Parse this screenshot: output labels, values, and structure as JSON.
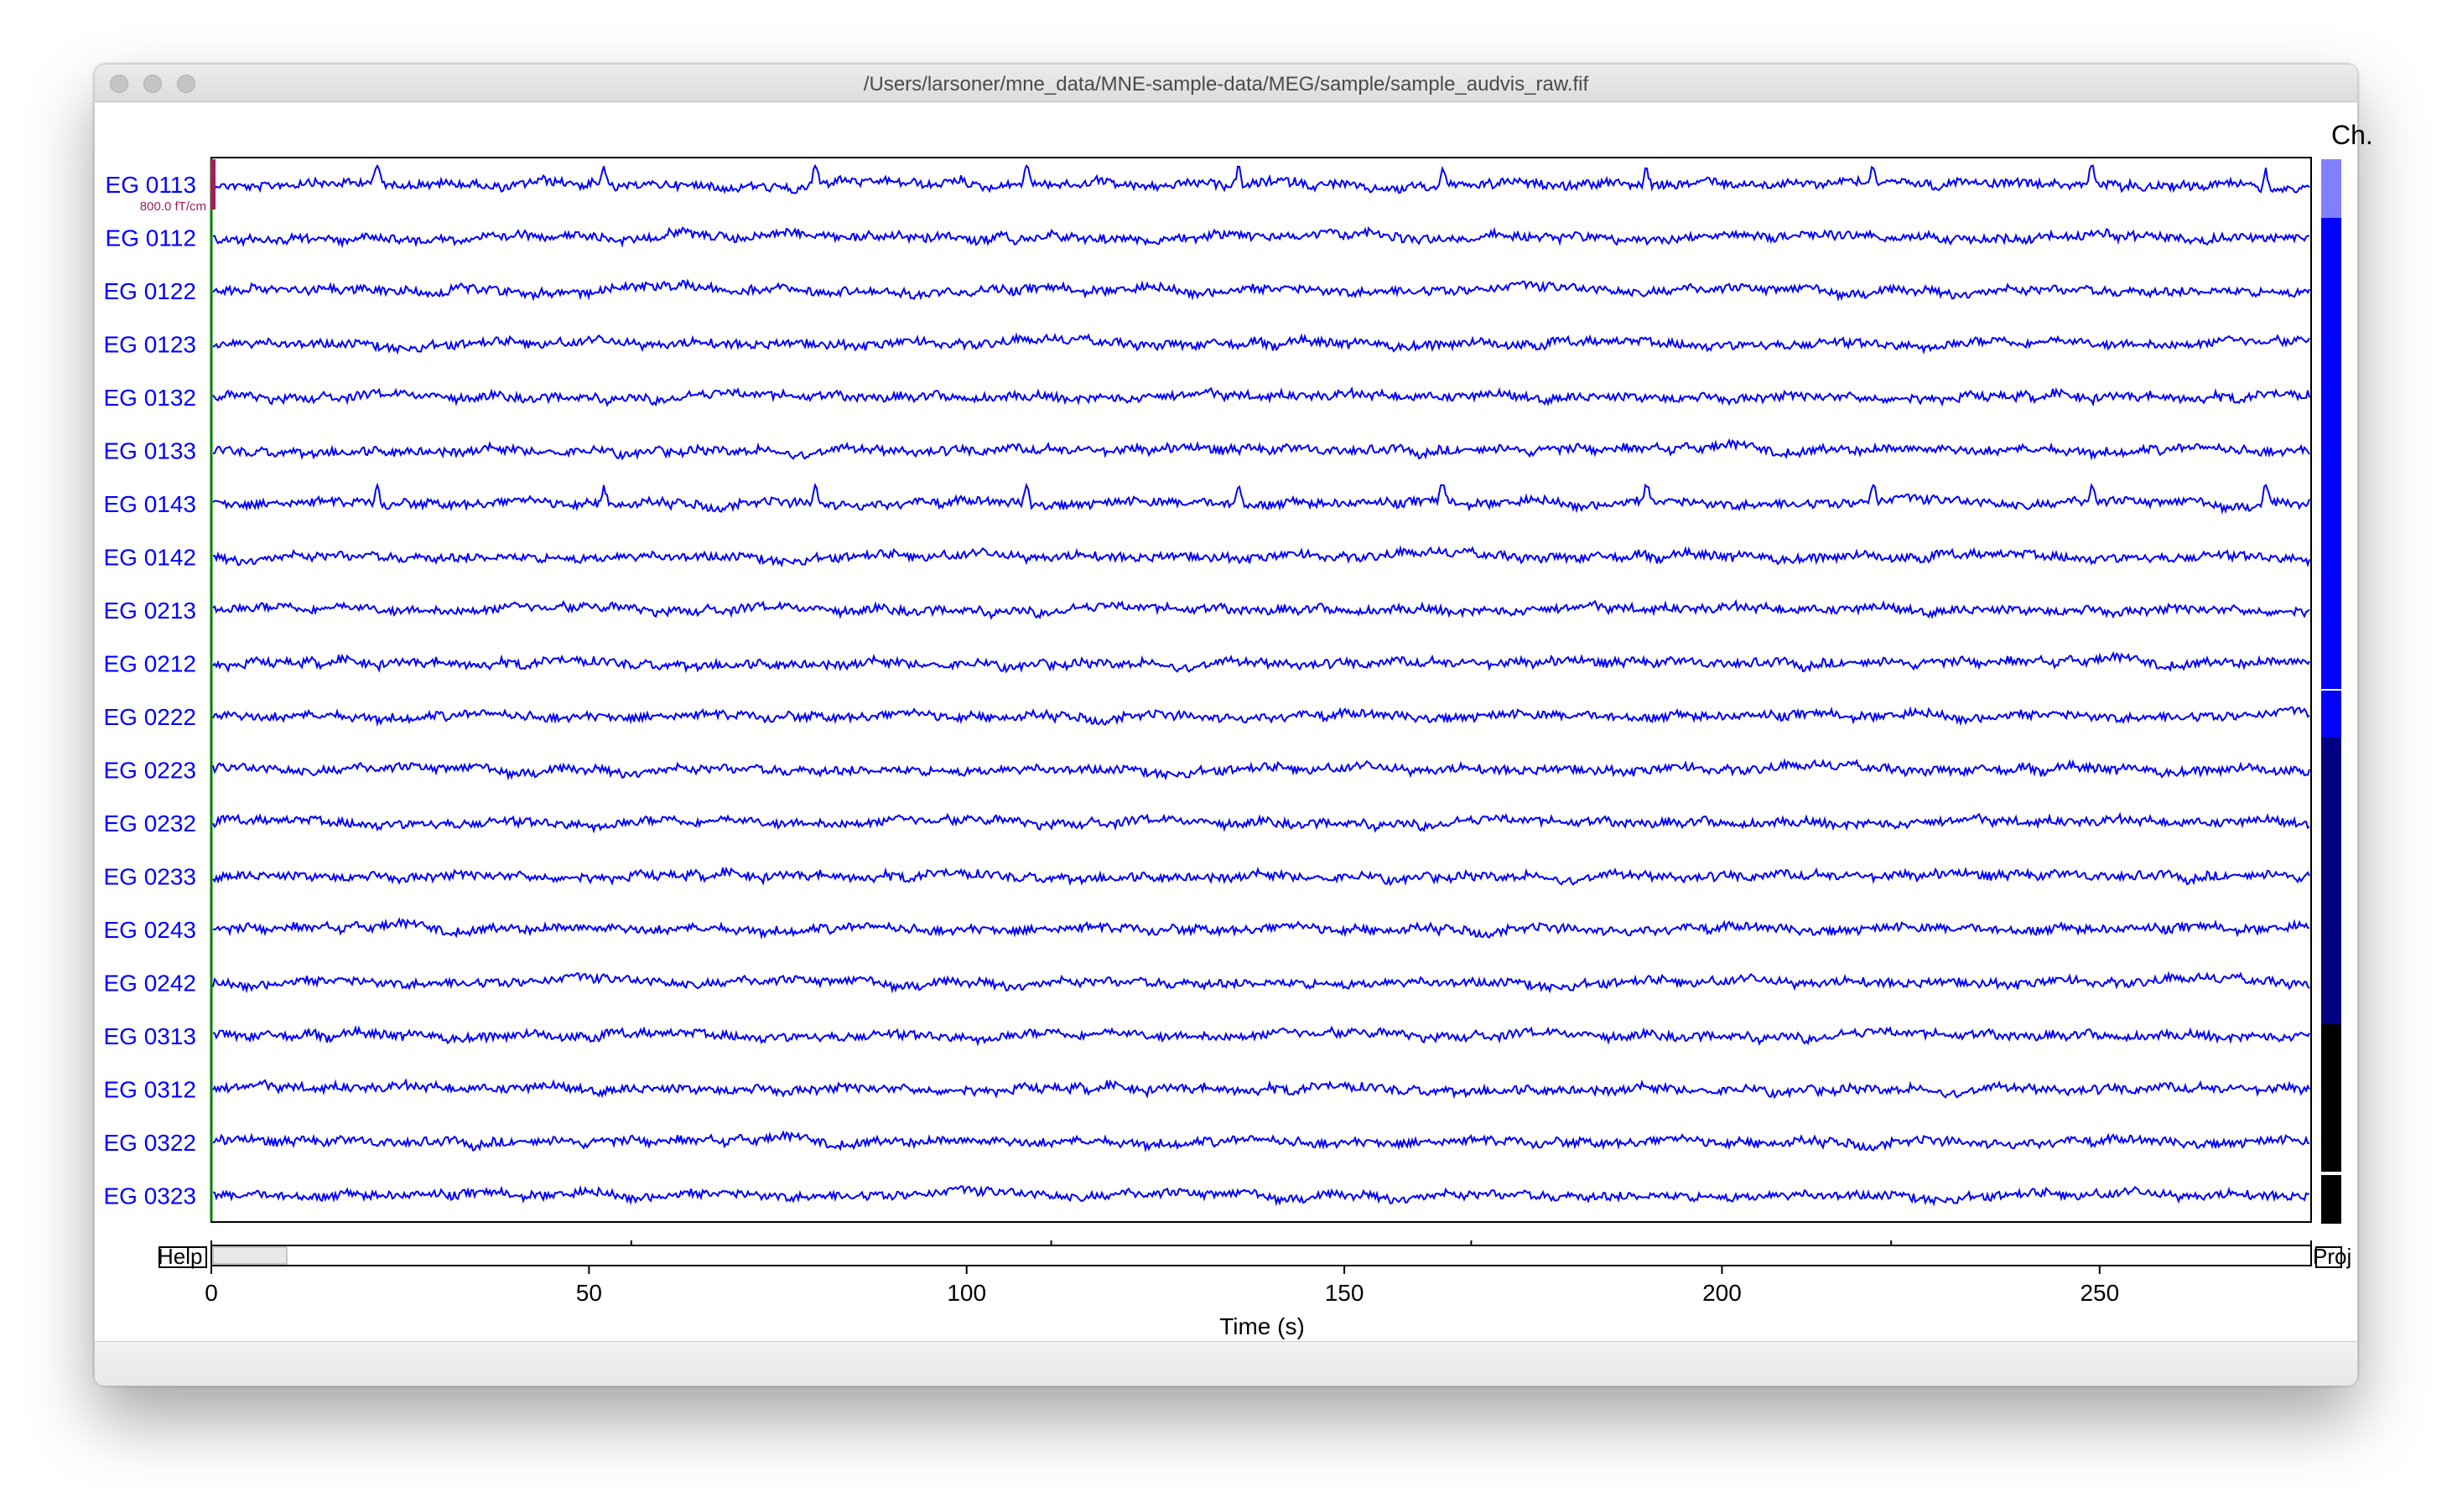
{
  "window": {
    "title": "/Users/larsoner/mne_data/MNE-sample-data/MEG/sample/sample_audvis_raw.fif"
  },
  "browser": {
    "scale_label": "800.0 fT/cm",
    "channel_bar_label": "Ch.",
    "help_button": "Help",
    "proj_button": "Proj",
    "xlabel": "Time (s)",
    "time_ticks": [
      "0",
      "50",
      "100",
      "150",
      "200",
      "250"
    ],
    "channels": [
      "EG 0113",
      "EG 0112",
      "EG 0122",
      "EG 0123",
      "EG 0132",
      "EG 0133",
      "EG 0143",
      "EG 0142",
      "EG 0213",
      "EG 0212",
      "EG 0222",
      "EG 0223",
      "EG 0232",
      "EG 0233",
      "EG 0243",
      "EG 0242",
      "EG 0313",
      "EG 0312",
      "EG 0322",
      "EG 0323"
    ]
  },
  "colors": {
    "trace": "#0000ff",
    "label": "#0000ff",
    "scale_bar": "#a0205a",
    "start_marker": "#008000",
    "channel_bar": [
      "#8080ff",
      "#0000ff",
      "#000080",
      "#000000"
    ]
  },
  "chart_data": {
    "type": "line",
    "xlabel": "Time (s)",
    "xlim": [
      0,
      278
    ],
    "x_ticks": [
      0,
      50,
      100,
      150,
      200,
      250
    ],
    "series_names": [
      "EG 0113",
      "EG 0112",
      "EG 0122",
      "EG 0123",
      "EG 0132",
      "EG 0133",
      "EG 0143",
      "EG 0142",
      "EG 0213",
      "EG 0212",
      "EG 0222",
      "EG 0223",
      "EG 0232",
      "EG 0233",
      "EG 0243",
      "EG 0242",
      "EG 0313",
      "EG 0312",
      "EG 0322",
      "EG 0323"
    ]
  }
}
